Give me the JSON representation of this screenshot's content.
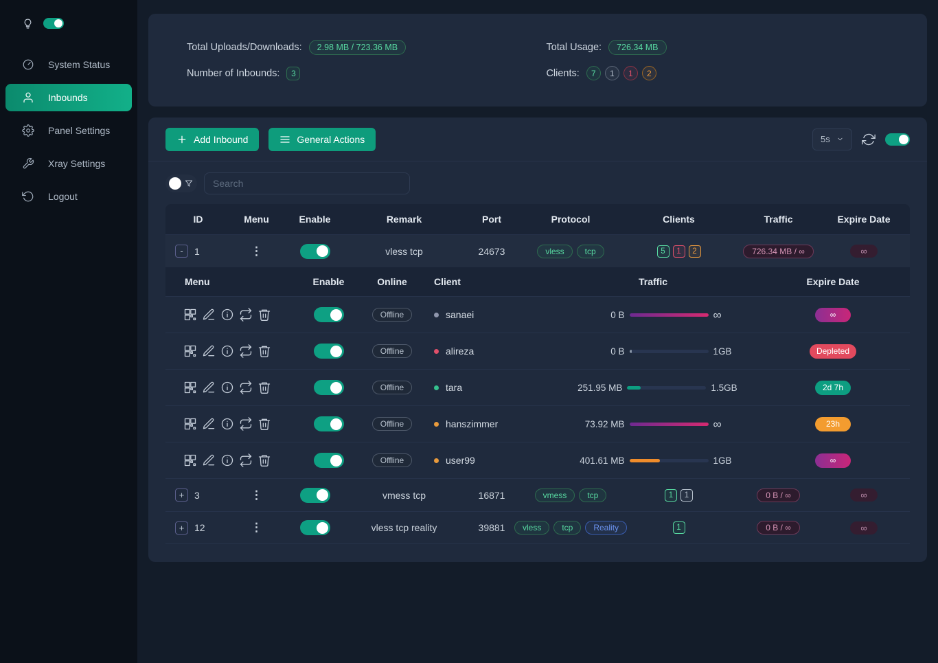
{
  "colors": {
    "accent_teal": "#0e9c7c",
    "status_green": "#58d9a1",
    "status_red": "#e0506a",
    "status_orange": "#eb9a3d",
    "status_gray": "#b4bfcb",
    "reality_blue": "#6b93ef",
    "traffic_magenta": "#d62a70",
    "expire_purple": "#c92678"
  },
  "icons": {
    "menu_dots": "⋮"
  },
  "sidebar": {
    "items": [
      {
        "label": "System Status"
      },
      {
        "label": "Inbounds"
      },
      {
        "label": "Panel Settings"
      },
      {
        "label": "Xray Settings"
      },
      {
        "label": "Logout"
      }
    ]
  },
  "stats": {
    "uploads": {
      "label": "Total Uploads/Downloads:",
      "value": "2.98 MB / 723.36 MB"
    },
    "usage": {
      "label": "Total Usage:",
      "value": "726.34 MB"
    },
    "inbounds": {
      "label": "Number of Inbounds:",
      "value": "3"
    },
    "clients": {
      "label": "Clients:",
      "counts": [
        "7",
        "1",
        "1",
        "2"
      ]
    }
  },
  "toolbar": {
    "add_inbound_label": "Add Inbound",
    "general_actions_label": "General Actions",
    "refresh_interval": "5s"
  },
  "search": {
    "placeholder": "Search"
  },
  "inbound_table": {
    "headers": [
      "ID",
      "Menu",
      "Enable",
      "Remark",
      "Port",
      "Protocol",
      "Clients",
      "Traffic",
      "Expire Date"
    ],
    "rows": [
      {
        "expand": "-",
        "id": "1",
        "remark": "vless tcp",
        "port": "24673",
        "protocols": [
          "vless",
          "tcp"
        ],
        "client_counts": [
          "5",
          "1",
          "2"
        ],
        "traffic": "726.34 MB / ∞",
        "expire": "∞"
      },
      {
        "expand": "+",
        "id": "3",
        "remark": "vmess tcp",
        "port": "16871",
        "protocols": [
          "vmess",
          "tcp"
        ],
        "client_counts": [
          "1",
          "1"
        ],
        "traffic": "0 B / ∞",
        "expire": "∞"
      },
      {
        "expand": "+",
        "id": "12",
        "remark": "vless tcp reality",
        "port": "39881",
        "protocols": [
          "vless",
          "tcp",
          "Reality"
        ],
        "client_counts": [
          "1"
        ],
        "traffic": "0 B / ∞",
        "expire": "∞"
      }
    ]
  },
  "client_table": {
    "headers": [
      "Menu",
      "Enable",
      "Online",
      "Client",
      "Traffic",
      "Expire Date"
    ],
    "rows": [
      {
        "status": "Offline",
        "name": "sanaei",
        "used": "0 B",
        "total": "∞",
        "progress": 100,
        "expire": "∞"
      },
      {
        "status": "Offline",
        "name": "alireza",
        "used": "0 B",
        "total": "1GB",
        "progress": 3,
        "expire": "Depleted"
      },
      {
        "status": "Offline",
        "name": "tara",
        "used": "251.95 MB",
        "total": "1.5GB",
        "progress": 17,
        "expire": "2d 7h"
      },
      {
        "status": "Offline",
        "name": "hanszimmer",
        "used": "73.92 MB",
        "total": "∞",
        "progress": 100,
        "expire": "23h"
      },
      {
        "status": "Offline",
        "name": "user99",
        "used": "401.61 MB",
        "total": "1GB",
        "progress": 39,
        "expire": "∞"
      }
    ]
  }
}
